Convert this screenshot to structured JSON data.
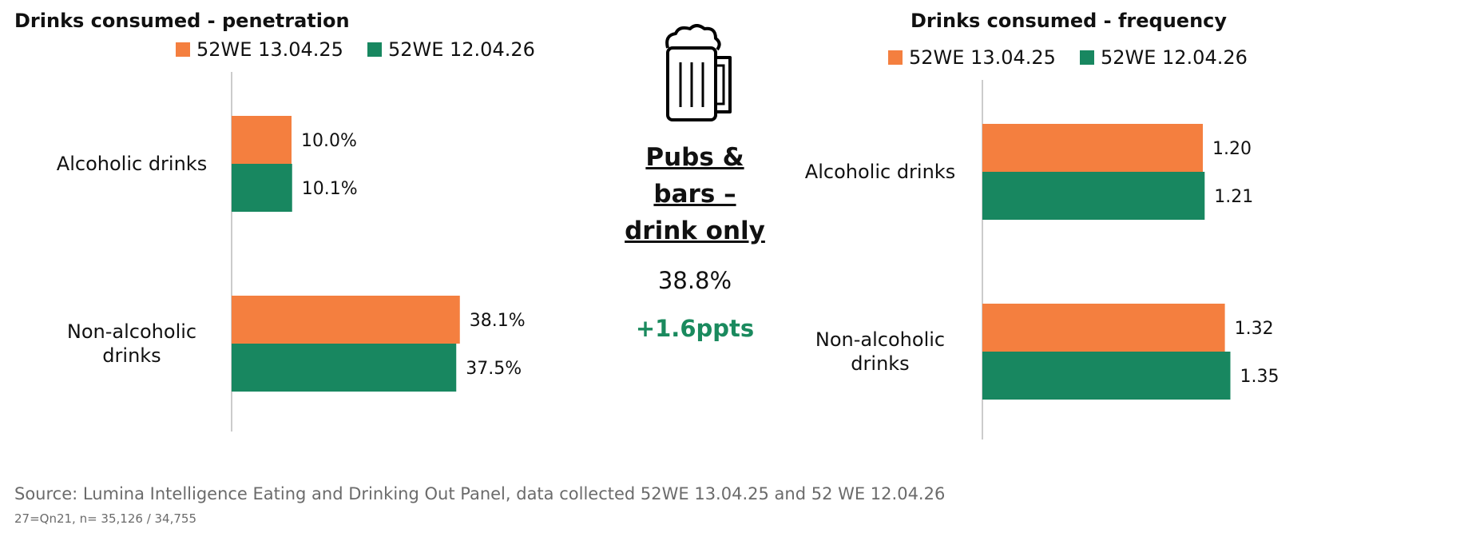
{
  "colors": {
    "orange": "#f47f3f",
    "green": "#188760",
    "axis": "#cccccc",
    "delta": "#1a8a5e"
  },
  "center": {
    "icon": "beer-mug-icon",
    "title_lines": [
      "Pubs &",
      "bars –",
      "drink only"
    ],
    "value": "38.8%",
    "delta": "+1.6ppts"
  },
  "source": "Source: Lumina Intelligence Eating and Drinking Out Panel, data collected 52WE 13.04.25 and 52 WE 12.04.26",
  "footnote": "27=Qn21, n= 35,126 / 34,755",
  "chart_data": [
    {
      "type": "bar",
      "orientation": "horizontal",
      "title": "Drinks consumed - penetration",
      "categories": [
        "Alcoholic drinks",
        "Non-alcoholic drinks"
      ],
      "series": [
        {
          "name": "52WE 13.04.25",
          "values": [
            10.0,
            38.1
          ],
          "labels": [
            "10.0%",
            "38.1%"
          ]
        },
        {
          "name": "52WE 12.04.26",
          "values": [
            10.1,
            37.5
          ],
          "labels": [
            "10.1%",
            "37.5%"
          ]
        }
      ],
      "xlim": [
        0,
        60
      ],
      "grid": false,
      "legend": "top"
    },
    {
      "type": "bar",
      "orientation": "horizontal",
      "title": "Drinks consumed - frequency",
      "categories": [
        "Alcoholic drinks",
        "Non-alcoholic drinks"
      ],
      "series": [
        {
          "name": "52WE 13.04.25",
          "values": [
            1.2,
            1.32
          ],
          "labels": [
            "1.20",
            "1.32"
          ]
        },
        {
          "name": "52WE 12.04.26",
          "values": [
            1.21,
            1.35
          ],
          "labels": [
            "1.21",
            "1.35"
          ]
        }
      ],
      "xlim": [
        0,
        2
      ],
      "grid": false,
      "legend": "top"
    }
  ]
}
